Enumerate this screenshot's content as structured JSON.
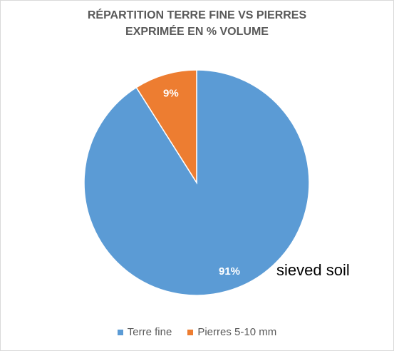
{
  "chart_data": {
    "type": "pie",
    "title": "RÉPARTITION TERRE FINE VS PIERRES EXPRIMÉE EN % VOLUME",
    "title_lines": [
      "RÉPARTITION TERRE FINE VS PIERRES",
      "EXPRIMÉE EN % VOLUME"
    ],
    "categories": [
      "Terre fine",
      "Pierres 5-10 mm"
    ],
    "values": [
      91,
      9
    ],
    "data_labels": [
      "91%",
      "9%"
    ],
    "colors": [
      "#5B9BD5",
      "#ED7D31"
    ],
    "legend_position": "bottom",
    "annotations": [
      "sieved soil"
    ]
  }
}
